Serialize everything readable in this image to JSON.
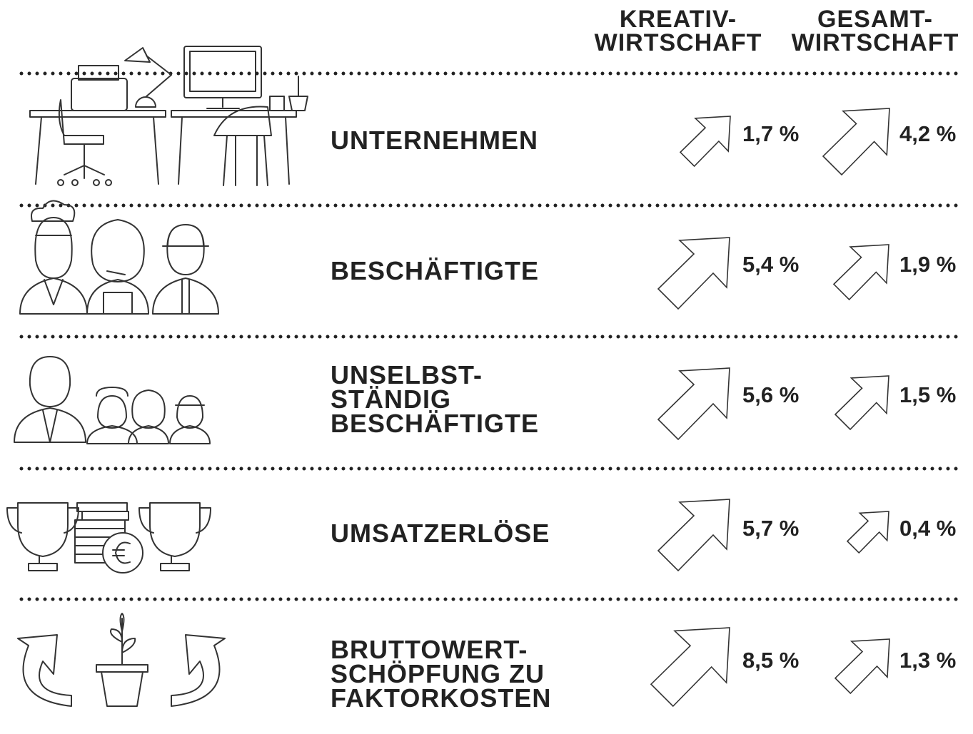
{
  "header": {
    "columns": [
      [
        "KREATIV-",
        "WIRTSCHAFT"
      ],
      [
        "GESAMT-",
        "WIRTSCHAFT"
      ]
    ]
  },
  "rows": [
    {
      "label": [
        "UNTERNEHMEN"
      ],
      "kreativ": "1,7 %",
      "gesamt": "4,2 %"
    },
    {
      "label": [
        "BESCHÄFTIGTE"
      ],
      "kreativ": "5,4 %",
      "gesamt": "1,9 %"
    },
    {
      "label": [
        "UNSELBST-",
        "STÄNDIG",
        "BESCHÄFTIGTE"
      ],
      "kreativ": "5,6 %",
      "gesamt": "1,5 %"
    },
    {
      "label": [
        "UMSATZERLÖSE"
      ],
      "kreativ": "5,7 %",
      "gesamt": "0,4 %"
    },
    {
      "label": [
        "BRUTTOWERT-",
        "SCHÖPFUNG ZU",
        "FAKTORKOSTEN"
      ],
      "kreativ": "8,5 %",
      "gesamt": "1,3 %"
    }
  ]
}
